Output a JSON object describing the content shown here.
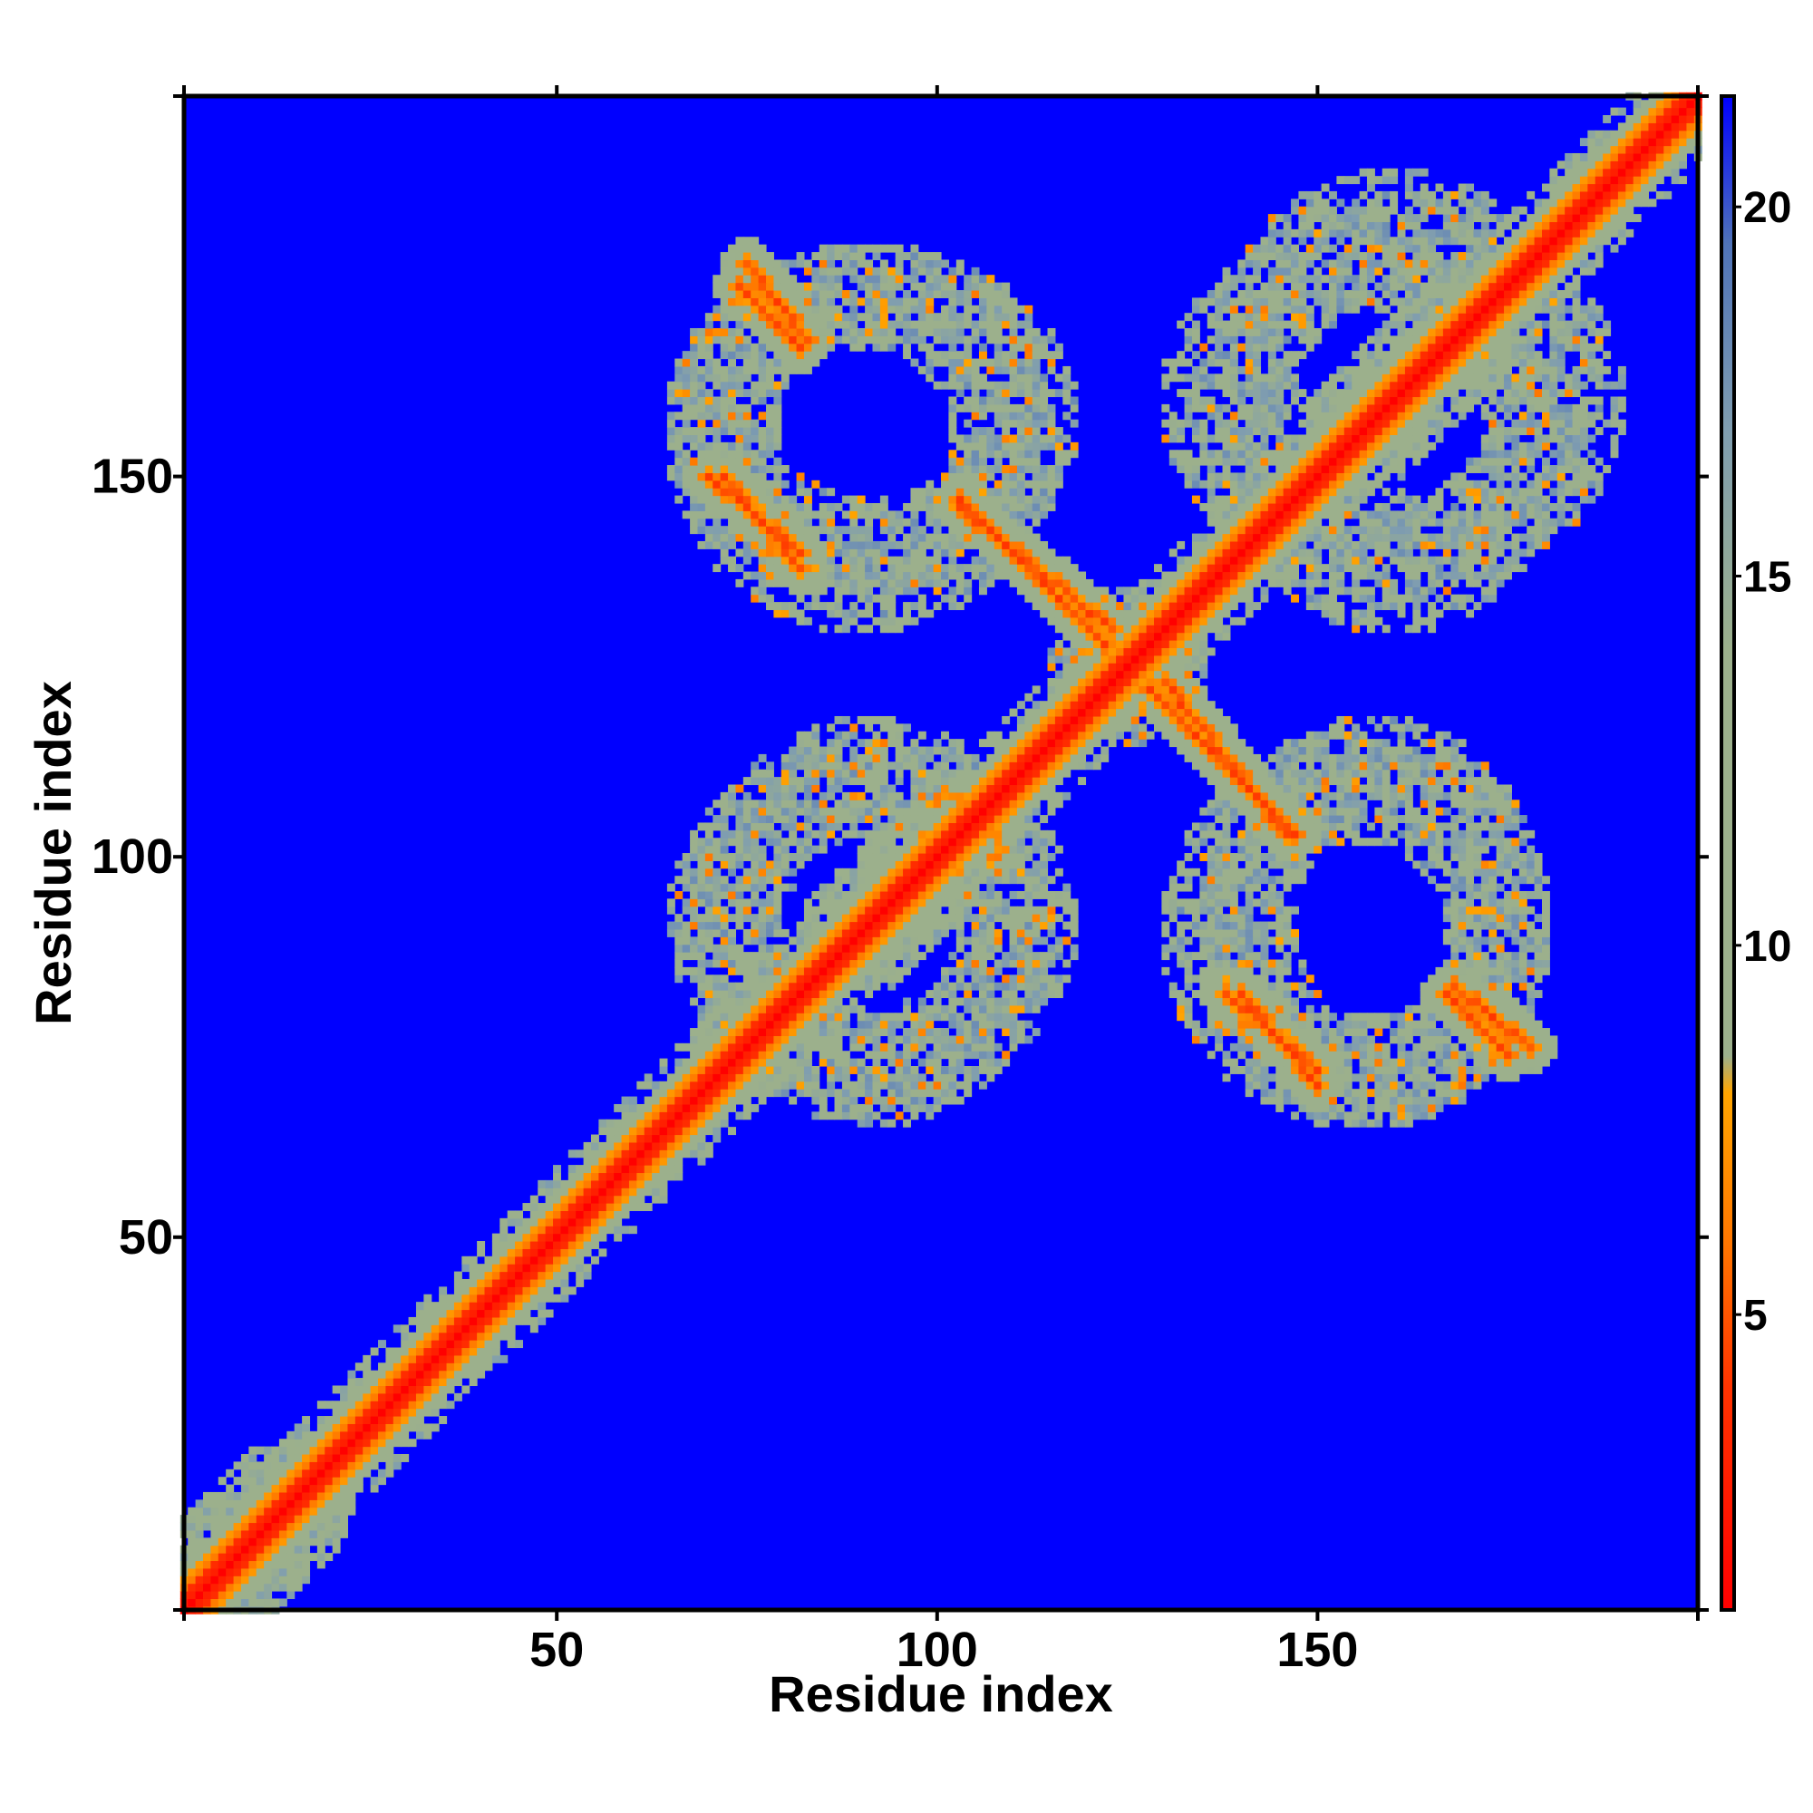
{
  "chart_data": {
    "type": "heatmap",
    "title": "",
    "xlabel": "Residue index",
    "ylabel": "Residue index",
    "n_residues": 200,
    "xlim": [
      1,
      200
    ],
    "ylim": [
      1,
      200
    ],
    "xticks": [
      50,
      100,
      150
    ],
    "yticks": [
      50,
      100,
      150
    ],
    "colorbar": {
      "ticks": [
        5,
        10,
        15,
        20
      ],
      "range": [
        1,
        21.5
      ],
      "colors": [
        {
          "value": 1,
          "color": "#ff0000"
        },
        {
          "value": 4,
          "color": "#ff3300"
        },
        {
          "value": 6,
          "color": "#ff7700"
        },
        {
          "value": 8,
          "color": "#ffa500"
        },
        {
          "value": 8.5,
          "color": "#9cb08c"
        },
        {
          "value": 14,
          "color": "#9cb08c"
        },
        {
          "value": 17,
          "color": "#7f9db0"
        },
        {
          "value": 19.5,
          "color": "#4f73b8"
        },
        {
          "value": 21.5,
          "color": "#0000ff"
        }
      ]
    },
    "background_value": 21.5,
    "structure": {
      "diagonal_band": "distance ~1-4 near i=j, broadening into 6-14 halo",
      "contact_bands": [
        {
          "name": "antiparallel-upper-left-a",
          "x": [
            75,
            83
          ],
          "y": [
            178,
            168
          ],
          "value": 6
        },
        {
          "name": "antiparallel-upper-left-b",
          "x": [
            72,
            82
          ],
          "y": [
            150,
            138
          ],
          "value": 6
        },
        {
          "name": "antiparallel-center-upper",
          "x": [
            103,
            123
          ],
          "y": [
            146,
            130
          ],
          "value": 6
        },
        {
          "name": "antiparallel-center-lower",
          "x": [
            128,
            147
          ],
          "y": [
            122,
            103
          ],
          "value": 6
        },
        {
          "name": "antiparallel-lower-right-a",
          "x": [
            140,
            150
          ],
          "y": [
            82,
            70
          ],
          "value": 6
        },
        {
          "name": "antiparallel-lower-right-b",
          "x": [
            167,
            175
          ],
          "y": [
            82,
            74
          ],
          "value": 6
        }
      ],
      "halo_regions": [
        {
          "name": "upper-left-block",
          "x": [
            65,
            118
          ],
          "y": [
            135,
            180
          ],
          "value": 11
        },
        {
          "name": "upper-right-block",
          "x": [
            130,
            190
          ],
          "y": [
            135,
            185
          ],
          "value": 11
        },
        {
          "name": "lower-left-block",
          "x": [
            65,
            118
          ],
          "y": [
            68,
            115
          ],
          "value": 11
        },
        {
          "name": "lower-right-block",
          "x": [
            130,
            180
          ],
          "y": [
            65,
            115
          ],
          "value": 11
        },
        {
          "name": "cross-center",
          "x": [
            115,
            135
          ],
          "y": [
            115,
            135
          ],
          "value": 11
        }
      ]
    }
  }
}
